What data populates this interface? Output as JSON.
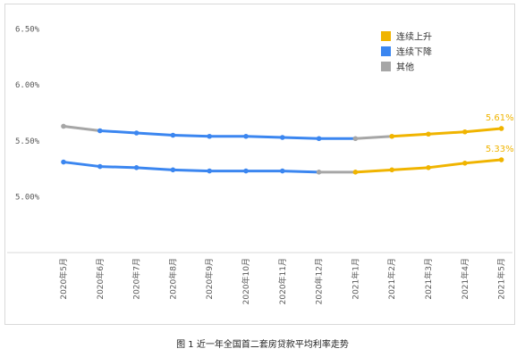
{
  "caption": "图 1 近一年全国首二套房贷款平均利率走势",
  "chart_data": {
    "type": "line",
    "categories": [
      "2020年5月",
      "2020年6月",
      "2020年7月",
      "2020年8月",
      "2020年9月",
      "2020年10月",
      "2020年11月",
      "2020年12月",
      "2021年1月",
      "2021年2月",
      "2021年3月",
      "2021年4月",
      "2021年5月"
    ],
    "ylim": [
      4.5,
      6.6
    ],
    "yticks": [
      5.0,
      5.5,
      6.0,
      6.5
    ],
    "ytick_labels": [
      "5.00%",
      "5.50%",
      "6.00%",
      "6.50%"
    ],
    "legend_position": "top-right",
    "legend": [
      {
        "name": "连续上升",
        "color": "#f0b400"
      },
      {
        "name": "连续下降",
        "color": "#3b86f0"
      },
      {
        "name": "其他",
        "color": "#a6a6a6"
      }
    ],
    "series": [
      {
        "values": [
          5.63,
          5.59,
          5.57,
          5.55,
          5.54,
          5.54,
          5.53,
          5.52,
          5.52,
          5.54,
          5.56,
          5.58,
          5.61
        ],
        "segments": [
          "其他",
          "连续下降",
          "连续下降",
          "连续下降",
          "连续下降",
          "连续下降",
          "连续下降",
          "连续下降",
          "其他",
          "连续上升",
          "连续上升",
          "连续上升"
        ],
        "end_label": "5.61%"
      },
      {
        "values": [
          5.31,
          5.27,
          5.26,
          5.24,
          5.23,
          5.23,
          5.23,
          5.22,
          5.22,
          5.24,
          5.26,
          5.3,
          5.33
        ],
        "segments": [
          "连续下降",
          "连续下降",
          "连续下降",
          "连续下降",
          "连续下降",
          "连续下降",
          "连续下降",
          "其他",
          "连续上升",
          "连续上升",
          "连续上升",
          "连续上升"
        ],
        "end_label": "5.33%"
      }
    ]
  }
}
